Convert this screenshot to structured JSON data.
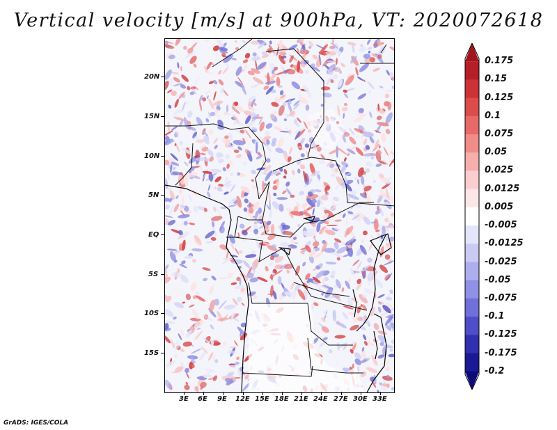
{
  "title": "Vertical velocity [m/s] at 900hPa, VT: 2020072618",
  "credit": "GrADS: IGES/COLA",
  "lat_labels": [
    "20N",
    "15N",
    "10N",
    "5N",
    "EQ",
    "5S",
    "10S",
    "15S"
  ],
  "lon_labels": [
    "3E",
    "6E",
    "9E",
    "12E",
    "15E",
    "18E",
    "21E",
    "24E",
    "27E",
    "30E",
    "33E"
  ],
  "colorbar": {
    "labels": [
      "0.175",
      "0.15",
      "0.125",
      "0.1",
      "0.075",
      "0.05",
      "0.025",
      "0.0125",
      "0.005",
      "-0.005",
      "-0.0125",
      "-0.025",
      "-0.05",
      "-0.075",
      "-0.1",
      "-0.125",
      "-0.175",
      "-0.2"
    ],
    "colors": [
      "#a0141e",
      "#b81e28",
      "#cc3236",
      "#dd4c4c",
      "#e86a68",
      "#f08c8a",
      "#f6afac",
      "#facece",
      "#fde6e6",
      "#ffffff",
      "#e4e4fa",
      "#cacaf4",
      "#aeaeee",
      "#9090e4",
      "#7070d8",
      "#4e4ec8",
      "#3030b0",
      "#1a1a96",
      "#0c0c78"
    ]
  }
}
